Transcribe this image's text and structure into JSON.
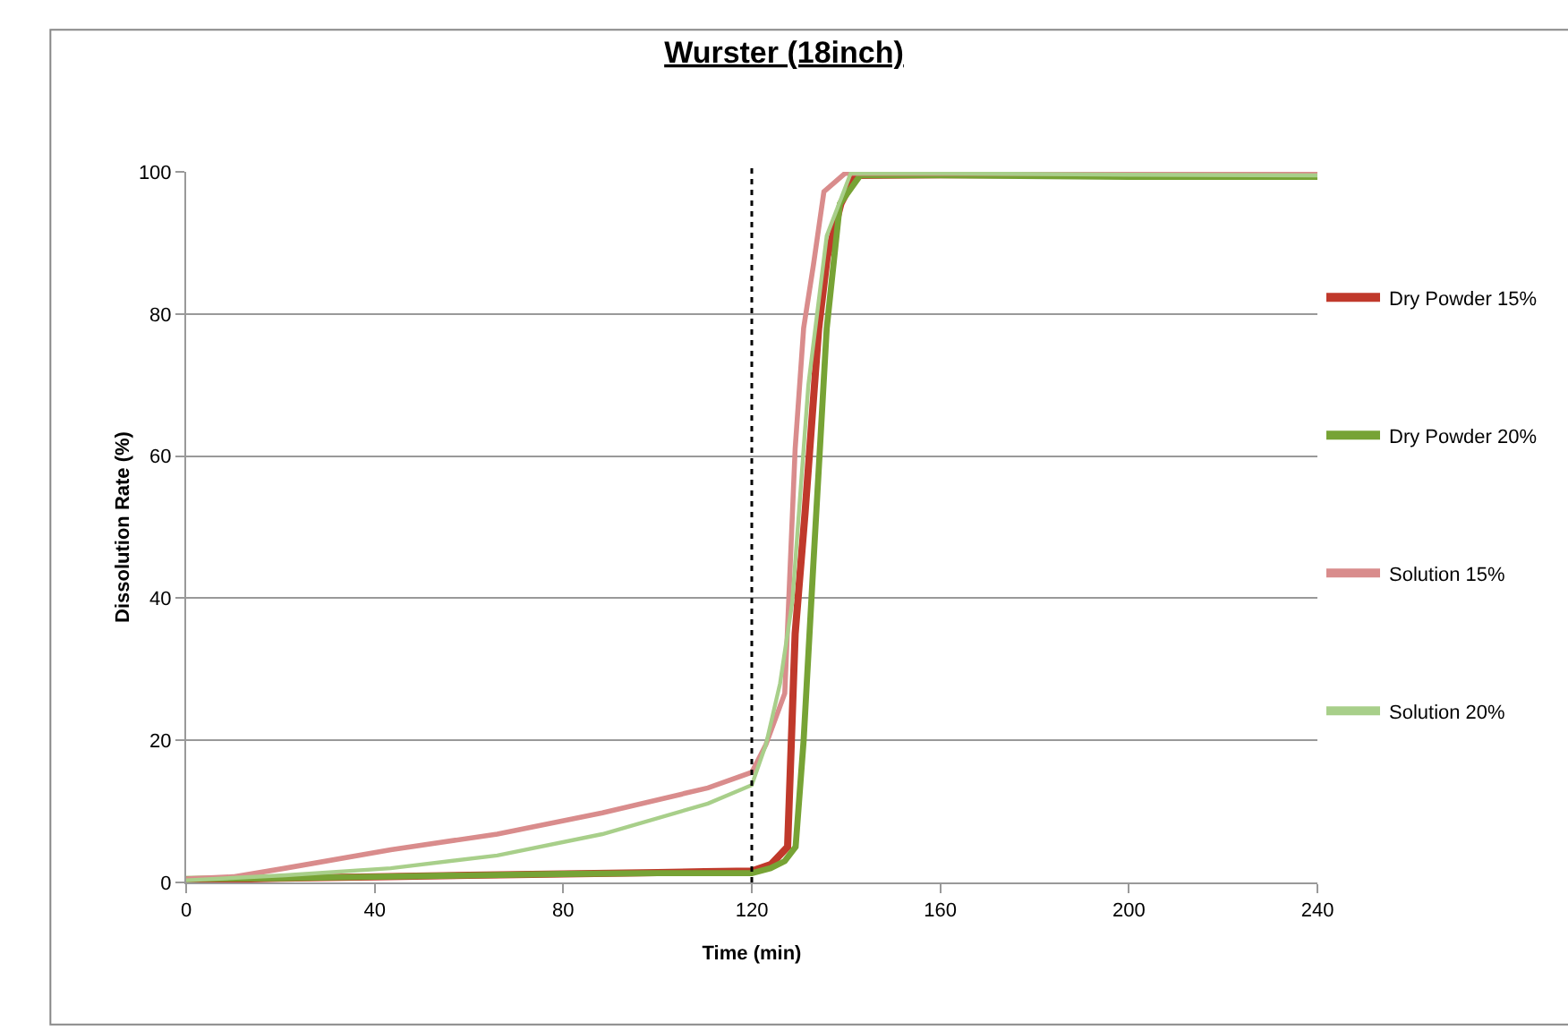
{
  "chart_data": {
    "type": "line",
    "title": "Wurster (18inch)",
    "xlabel": "Time (min)",
    "ylabel": "Dissolution Rate (%)",
    "xlim": [
      0,
      240
    ],
    "xticks": [
      0,
      40,
      80,
      120,
      160,
      200,
      240
    ],
    "ylim": [
      0,
      100
    ],
    "yticks": [
      0,
      20,
      40,
      60,
      80,
      100
    ],
    "grid": "y",
    "legend": "right",
    "marker": "none",
    "line_style": "solid",
    "ref_lines": [
      {
        "axis": "x",
        "value": 120,
        "label": null,
        "color": "#000000",
        "line_style": "dotted"
      }
    ],
    "series": [
      {
        "name": "Dry Powder 15%",
        "color": "#c0392b",
        "x": [
          0,
          20,
          40,
          60,
          80,
          100,
          110,
          120,
          124,
          127.6,
          129.2,
          131.3,
          134.2,
          136,
          138.9,
          142,
          160,
          200,
          240
        ],
        "values": [
          0.3,
          0.6,
          0.8,
          1,
          1.2,
          1.4,
          1.5,
          1.6,
          2.5,
          5,
          35,
          52,
          78,
          88,
          95.5,
          99.5,
          99.6,
          99.6,
          99.6
        ]
      },
      {
        "name": "Dry Powder 20%",
        "color": "#77a335",
        "x": [
          0,
          20,
          40,
          60,
          80,
          100,
          110,
          120,
          124,
          127,
          129.3,
          131,
          133,
          135.9,
          138.7,
          143,
          160,
          200,
          240
        ],
        "values": [
          0.5,
          0.6,
          0.8,
          1,
          1.2,
          1.3,
          1.3,
          1.3,
          2,
          3,
          5,
          20,
          44,
          78,
          95.5,
          99.5,
          99.5,
          99.3,
          99.3
        ]
      },
      {
        "name": "Solution 15%",
        "color": "#d98c8c",
        "x": [
          0,
          10,
          21,
          43.4,
          66,
          88.3,
          110.7,
          120,
          123,
          127,
          129.2,
          131,
          133.1,
          135.3,
          139.8,
          160,
          200,
          240
        ],
        "values": [
          0.5,
          0.8,
          2,
          4.6,
          6.8,
          9.8,
          13.3,
          15.5,
          19.4,
          26.6,
          61,
          78,
          87,
          97.2,
          99.8,
          99.8,
          99.8,
          99.8
        ]
      },
      {
        "name": "Solution 20%",
        "color": "#a8cf8a",
        "x": [
          0,
          21,
          43.4,
          66,
          88.3,
          110.7,
          120,
          123,
          126,
          128.6,
          132,
          135.9,
          141,
          160,
          200,
          240
        ],
        "values": [
          0.3,
          1,
          2,
          3.8,
          6.8,
          11.1,
          13.7,
          19.4,
          28,
          39.5,
          70,
          91,
          99.8,
          99.8,
          99.6,
          99.5
        ]
      }
    ]
  }
}
